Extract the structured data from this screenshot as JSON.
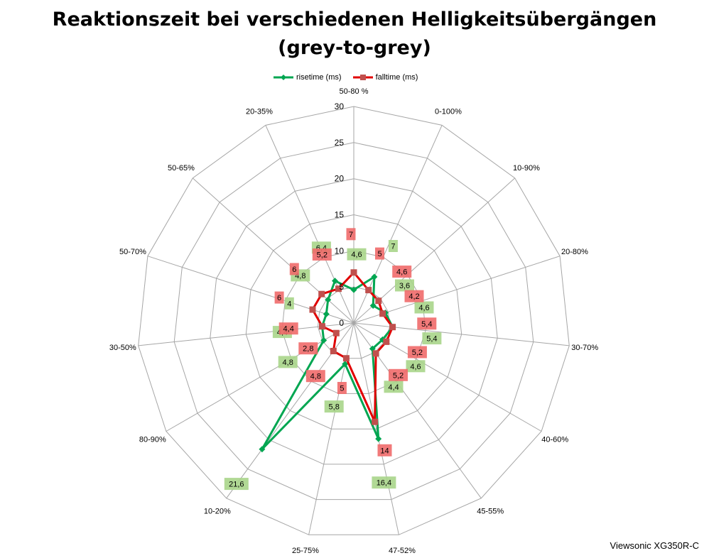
{
  "chart_data": {
    "type": "radar",
    "title_lines": [
      "Reaktionszeit bei verschiedenen Helligkeitsübergängen",
      "(grey-to-grey)"
    ],
    "categories": [
      "50-80 %",
      "0-100%",
      "10-90%",
      "20-80%",
      "30-70%",
      "40-60%",
      "45-55%",
      "47-52%",
      "25-75%",
      "10-20%",
      "80-90%",
      "30-50%",
      "50-70%",
      "50-65%",
      "20-35%"
    ],
    "rlim": [
      0,
      30
    ],
    "ticks": [
      0,
      5,
      10,
      15,
      20,
      25,
      30
    ],
    "tick_labels": [
      "0",
      "5",
      "10",
      "15",
      "20",
      "25",
      "30"
    ],
    "series": [
      {
        "name": "risetime (ms)",
        "color": "#00a651",
        "marker": "diamond",
        "values": [
          4.6,
          7,
          3.6,
          4.6,
          5.4,
          4.6,
          4.4,
          16.4,
          5.8,
          21.6,
          4.8,
          4.4,
          4,
          4.8,
          6.4
        ],
        "labels": [
          "4,6",
          "7",
          "3,6",
          "4,6",
          "5,4",
          "4,6",
          "4,4",
          "16,4",
          "5,8",
          "21,6",
          "4,8",
          "4,4",
          "4",
          "4,8",
          "6,4"
        ],
        "label_color": "#a9d58a"
      },
      {
        "name": "falltime (ms)",
        "color": "#e10000",
        "marker": "square",
        "values": [
          7,
          5,
          4.6,
          4.2,
          5.4,
          5.2,
          5.2,
          14,
          5,
          4.8,
          2.8,
          4.4,
          6,
          6,
          5.2
        ],
        "labels": [
          "7",
          "5",
          "4,6",
          "4,2",
          "5,4",
          "5,2",
          "5,2",
          "14",
          "5",
          "4,8",
          "2,8",
          "4,4",
          "6",
          "6",
          "5,2"
        ],
        "label_color": "#f06a6a"
      }
    ],
    "grid": true,
    "legend_position": "top"
  },
  "footer": {
    "watermark": "Viewsonic XG350R-C"
  }
}
